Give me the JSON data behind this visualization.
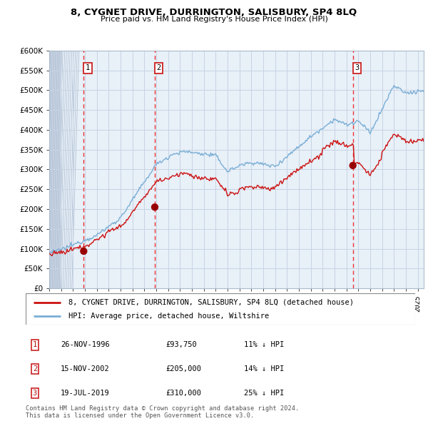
{
  "title1": "8, CYGNET DRIVE, DURRINGTON, SALISBURY, SP4 8LQ",
  "title2": "Price paid vs. HM Land Registry's House Price Index (HPI)",
  "legend_line1": "8, CYGNET DRIVE, DURRINGTON, SALISBURY, SP4 8LQ (detached house)",
  "legend_line2": "HPI: Average price, detached house, Wiltshire",
  "sale1_date": "26-NOV-1996",
  "sale1_price": 93750,
  "sale1_hpi": "11% ↓ HPI",
  "sale1_year": 1996.9,
  "sale2_date": "15-NOV-2002",
  "sale2_price": 205000,
  "sale2_hpi": "14% ↓ HPI",
  "sale2_year": 2002.88,
  "sale3_date": "19-JUL-2019",
  "sale3_price": 310000,
  "sale3_hpi": "25% ↓ HPI",
  "sale3_year": 2019.54,
  "hpi_color": "#7aaed6",
  "property_color": "#cc1111",
  "dashed_color": "#ee3333",
  "bg_color": "#e8f0f8",
  "grid_color": "#c8d4e4",
  "ymin": 0,
  "ymax": 600000,
  "xmin": 1994.0,
  "xmax": 2025.5,
  "footnote": "Contains HM Land Registry data © Crown copyright and database right 2024.\nThis data is licensed under the Open Government Licence v3.0."
}
